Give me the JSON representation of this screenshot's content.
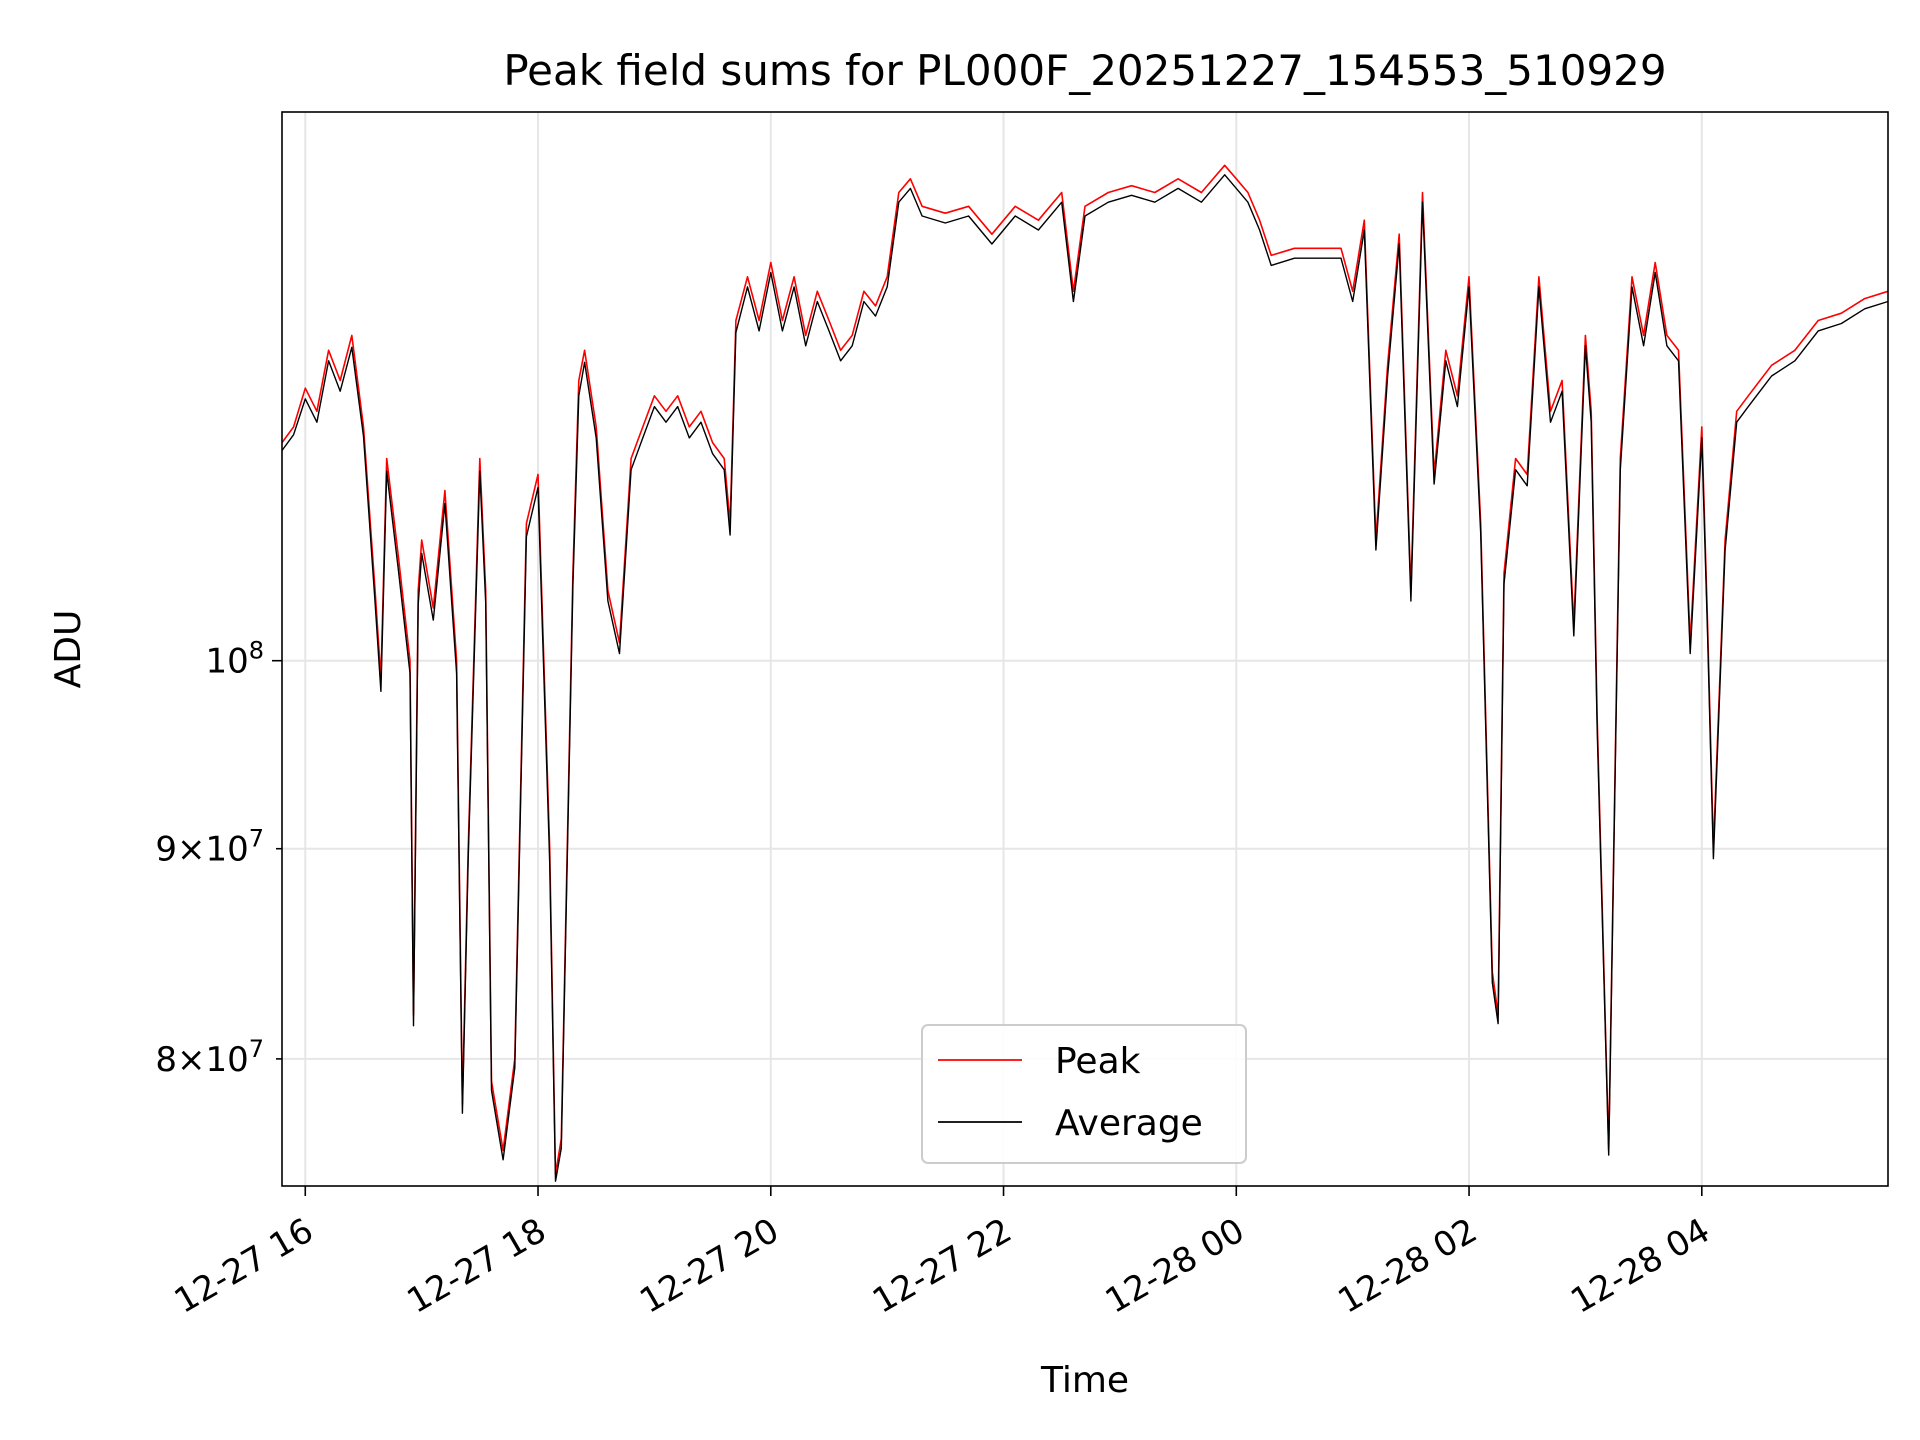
{
  "chart_data": {
    "type": "line",
    "title": "Peak field sums for PL000F_20251227_154553_510929",
    "xlabel": "Time",
    "ylabel": "ADU",
    "y_scale": "log",
    "xlim_hours_from_1227_0000": [
      15.8,
      29.6
    ],
    "ylim": [
      74500000,
      136000000
    ],
    "grid": true,
    "legend_location": "lower center",
    "x_ticks": [
      {
        "hour": 16,
        "label": "12-27 16"
      },
      {
        "hour": 18,
        "label": "12-27 18"
      },
      {
        "hour": 20,
        "label": "12-27 20"
      },
      {
        "hour": 22,
        "label": "12-27 22"
      },
      {
        "hour": 24,
        "label": "12-28 00"
      },
      {
        "hour": 26,
        "label": "12-28 02"
      },
      {
        "hour": 28,
        "label": "12-28 04"
      }
    ],
    "y_ticks": [
      {
        "value": 80000000,
        "mantissa": "8",
        "exp": "7",
        "major": false
      },
      {
        "value": 90000000,
        "mantissa": "9",
        "exp": "7",
        "major": false
      },
      {
        "value": 100000000,
        "mantissa": "",
        "exp": "8",
        "major": true
      }
    ],
    "tick_times": "×",
    "tick_base": "10",
    "series": [
      {
        "name": "Peak",
        "color": "#ff0000",
        "x": [
          15.8,
          15.9,
          16.0,
          16.1,
          16.2,
          16.3,
          16.4,
          16.5,
          16.6,
          16.65,
          16.7,
          16.8,
          16.9,
          16.93,
          16.97,
          17.0,
          17.1,
          17.2,
          17.3,
          17.35,
          17.4,
          17.5,
          17.55,
          17.6,
          17.7,
          17.8,
          17.9,
          18.0,
          18.1,
          18.15,
          18.2,
          18.3,
          18.35,
          18.4,
          18.5,
          18.6,
          18.7,
          18.8,
          18.9,
          19.0,
          19.1,
          19.2,
          19.3,
          19.4,
          19.5,
          19.6,
          19.65,
          19.7,
          19.8,
          19.9,
          20.0,
          20.1,
          20.2,
          20.3,
          20.4,
          20.5,
          20.6,
          20.7,
          20.8,
          20.9,
          21.0,
          21.1,
          21.2,
          21.3,
          21.5,
          21.7,
          21.9,
          22.1,
          22.3,
          22.5,
          22.6,
          22.7,
          22.9,
          23.1,
          23.3,
          23.5,
          23.7,
          23.9,
          24.0,
          24.1,
          24.2,
          24.3,
          24.5,
          24.7,
          24.9,
          25.0,
          25.1,
          25.2,
          25.3,
          25.4,
          25.5,
          25.6,
          25.7,
          25.8,
          25.9,
          26.0,
          26.1,
          26.2,
          26.25,
          26.3,
          26.4,
          26.5,
          26.6,
          26.7,
          26.8,
          26.9,
          27.0,
          27.05,
          27.1,
          27.2,
          27.3,
          27.4,
          27.5,
          27.6,
          27.7,
          27.8,
          27.9,
          28.0,
          28.05,
          28.1,
          28.2,
          28.3,
          28.4,
          28.6,
          28.8,
          29.0,
          29.2,
          29.4,
          29.6
        ],
        "values": [
          113000000,
          114000000,
          116500000,
          115000000,
          119000000,
          117000000,
          120000000,
          114000000,
          104000000,
          99000000,
          112000000,
          106000000,
          100000000,
          82000000,
          104000000,
          107000000,
          103000000,
          110000000,
          100000000,
          78000000,
          90000000,
          112000000,
          104000000,
          79000000,
          76000000,
          80000000,
          108000000,
          111000000,
          90000000,
          75000000,
          76500000,
          105000000,
          117000000,
          119000000,
          114000000,
          104000000,
          101000000,
          112000000,
          114000000,
          116000000,
          115000000,
          116000000,
          114000000,
          115000000,
          113000000,
          112000000,
          108000000,
          121000000,
          124000000,
          121000000,
          125000000,
          121000000,
          124000000,
          120000000,
          123000000,
          121000000,
          119000000,
          120000000,
          123000000,
          122000000,
          124000000,
          130000000,
          131000000,
          129000000,
          128500000,
          129000000,
          127000000,
          129000000,
          128000000,
          130000000,
          123000000,
          129000000,
          130000000,
          130500000,
          130000000,
          131000000,
          130000000,
          132000000,
          131000000,
          130000000,
          128000000,
          125500000,
          126000000,
          126000000,
          126000000,
          123000000,
          128000000,
          107000000,
          118000000,
          127000000,
          104000000,
          130000000,
          111000000,
          119000000,
          116000000,
          124000000,
          108000000,
          84000000,
          82000000,
          105000000,
          112000000,
          111000000,
          124000000,
          115000000,
          117000000,
          102000000,
          120000000,
          115000000,
          97000000,
          76000000,
          112000000,
          124000000,
          120000000,
          125000000,
          120000000,
          119000000,
          101000000,
          114000000,
          102000000,
          90000000,
          107000000,
          115000000,
          116000000,
          118000000,
          119000000,
          121000000,
          121500000,
          122500000,
          123000000
        ]
      },
      {
        "name": "Average",
        "color": "#000000",
        "x": [
          15.8,
          15.9,
          16.0,
          16.1,
          16.2,
          16.3,
          16.4,
          16.5,
          16.6,
          16.65,
          16.7,
          16.8,
          16.9,
          16.93,
          16.97,
          17.0,
          17.1,
          17.2,
          17.3,
          17.35,
          17.4,
          17.5,
          17.55,
          17.6,
          17.7,
          17.8,
          17.9,
          18.0,
          18.1,
          18.15,
          18.2,
          18.3,
          18.35,
          18.4,
          18.5,
          18.6,
          18.7,
          18.8,
          18.9,
          19.0,
          19.1,
          19.2,
          19.3,
          19.4,
          19.5,
          19.6,
          19.65,
          19.7,
          19.8,
          19.9,
          20.0,
          20.1,
          20.2,
          20.3,
          20.4,
          20.5,
          20.6,
          20.7,
          20.8,
          20.9,
          21.0,
          21.1,
          21.2,
          21.3,
          21.5,
          21.7,
          21.9,
          22.1,
          22.3,
          22.5,
          22.6,
          22.7,
          22.9,
          23.1,
          23.3,
          23.5,
          23.7,
          23.9,
          24.0,
          24.1,
          24.2,
          24.3,
          24.5,
          24.7,
          24.9,
          25.0,
          25.1,
          25.2,
          25.3,
          25.4,
          25.5,
          25.6,
          25.7,
          25.8,
          25.9,
          26.0,
          26.1,
          26.2,
          26.25,
          26.3,
          26.4,
          26.5,
          26.6,
          26.7,
          26.8,
          26.9,
          27.0,
          27.05,
          27.1,
          27.2,
          27.3,
          27.4,
          27.5,
          27.6,
          27.7,
          27.8,
          27.9,
          28.0,
          28.05,
          28.1,
          28.2,
          28.3,
          28.4,
          28.6,
          28.8,
          29.0,
          29.2,
          29.4,
          29.6
        ],
        "values": [
          112500000,
          113500000,
          115800000,
          114300000,
          118300000,
          116300000,
          119200000,
          113400000,
          103300000,
          98300000,
          111200000,
          105200000,
          99300000,
          81500000,
          103200000,
          106200000,
          102300000,
          109200000,
          99300000,
          77600000,
          89500000,
          111200000,
          103300000,
          78600000,
          75600000,
          79600000,
          107200000,
          110200000,
          89300000,
          74700000,
          76100000,
          104300000,
          116000000,
          118200000,
          113300000,
          103400000,
          100400000,
          111300000,
          113300000,
          115300000,
          114300000,
          115300000,
          113300000,
          114300000,
          112300000,
          111300000,
          107300000,
          120200000,
          123300000,
          120300000,
          124300000,
          120300000,
          123300000,
          119300000,
          122300000,
          120300000,
          118300000,
          119300000,
          122300000,
          121300000,
          123300000,
          129300000,
          130300000,
          128300000,
          127800000,
          128300000,
          126300000,
          128300000,
          127300000,
          129300000,
          122300000,
          128300000,
          129300000,
          129800000,
          129300000,
          130300000,
          129300000,
          131300000,
          130300000,
          129300000,
          127300000,
          124800000,
          125300000,
          125300000,
          125300000,
          122300000,
          127300000,
          106400000,
          117300000,
          126300000,
          103400000,
          129300000,
          110400000,
          118300000,
          115300000,
          123300000,
          107400000,
          83500000,
          81600000,
          104400000,
          111300000,
          110300000,
          123300000,
          114300000,
          116300000,
          101400000,
          119300000,
          114300000,
          96400000,
          75800000,
          111300000,
          123300000,
          119300000,
          124300000,
          119300000,
          118300000,
          100400000,
          113300000,
          101400000,
          89500000,
          106400000,
          114300000,
          115300000,
          117300000,
          118300000,
          120300000,
          120800000,
          121800000,
          122300000
        ]
      }
    ]
  }
}
